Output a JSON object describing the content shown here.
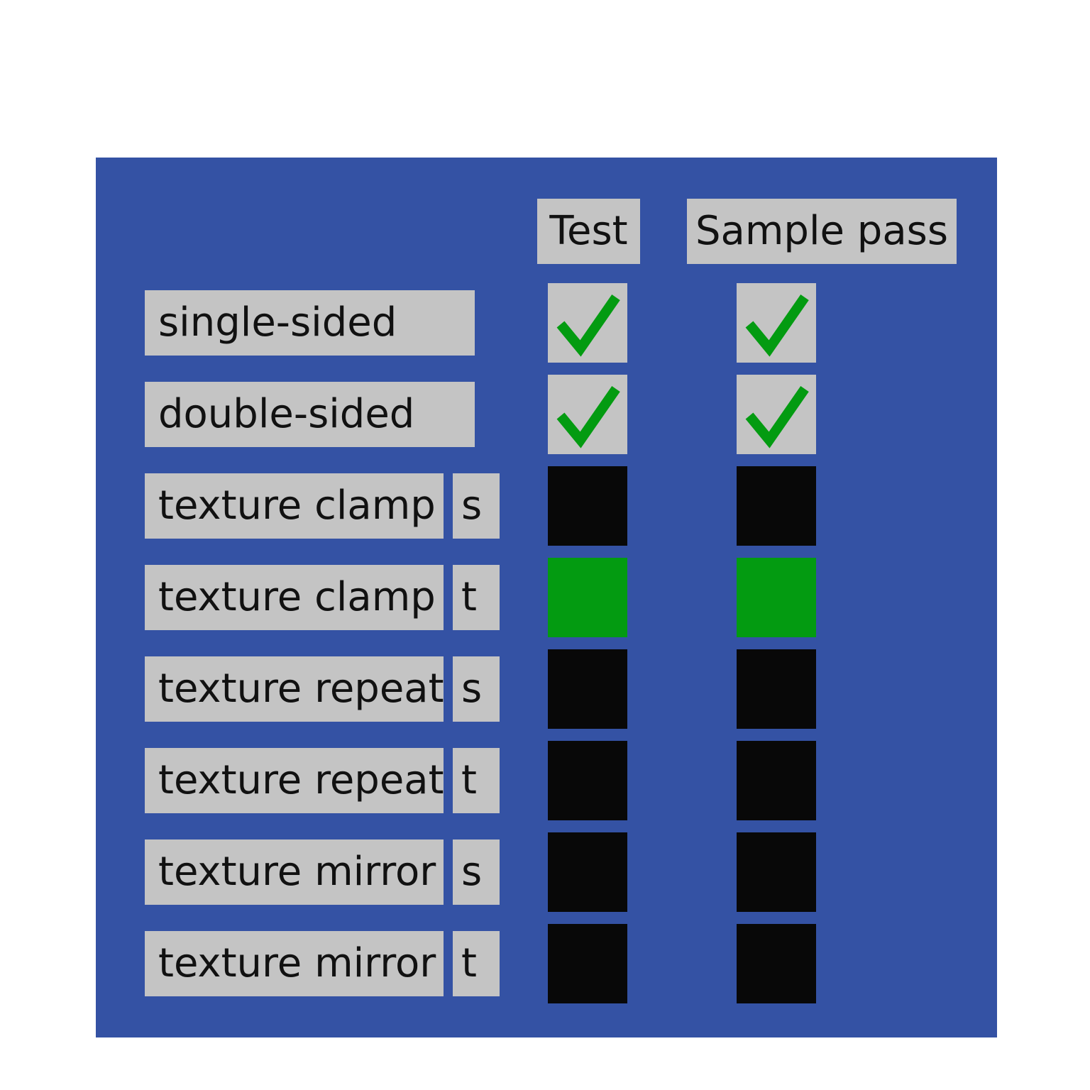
{
  "headers": {
    "test": "Test",
    "sample_pass": "Sample pass"
  },
  "colors": {
    "panel_background": "#3452a4",
    "label_background": "#c4c4c4",
    "check_green": "#039b11",
    "result_black": "#080808",
    "result_green": "#039b11"
  },
  "rows": [
    {
      "label": "single-sided",
      "axis": null,
      "test": "check",
      "sample": "check"
    },
    {
      "label": "double-sided",
      "axis": null,
      "test": "check",
      "sample": "check"
    },
    {
      "label": "texture clamp",
      "axis": "s",
      "test": "black",
      "sample": "black"
    },
    {
      "label": "texture clamp",
      "axis": "t",
      "test": "green",
      "sample": "green"
    },
    {
      "label": "texture repeat",
      "axis": "s",
      "test": "black",
      "sample": "black"
    },
    {
      "label": "texture repeat",
      "axis": "t",
      "test": "black",
      "sample": "black"
    },
    {
      "label": "texture mirror",
      "axis": "s",
      "test": "black",
      "sample": "black"
    },
    {
      "label": "texture mirror",
      "axis": "t",
      "test": "black",
      "sample": "black"
    }
  ]
}
